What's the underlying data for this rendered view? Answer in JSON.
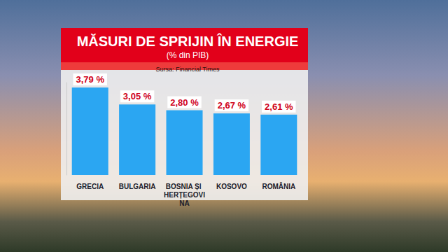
{
  "chart_data": {
    "type": "bar",
    "title": "MĂSURI DE SPRIJIN ÎN ENERGIE",
    "subtitle": "(% din PIB)",
    "source": "Sursa: Financial Times",
    "categories": [
      "GRECIA",
      "BULGARIA",
      "BOSNIA ȘI HERȚEGOVINA",
      "KOSOVO",
      "ROMÂNIA"
    ],
    "values": [
      3.79,
      3.05,
      2.8,
      2.67,
      2.61
    ],
    "value_labels": [
      "3,79 %",
      "3,05 %",
      "2,80 %",
      "2,67 %",
      "2,61 %"
    ],
    "color": "#2ba6f2",
    "ylim": [
      0,
      4
    ],
    "grid": false,
    "data_labels": true,
    "tick_labels": "x"
  }
}
